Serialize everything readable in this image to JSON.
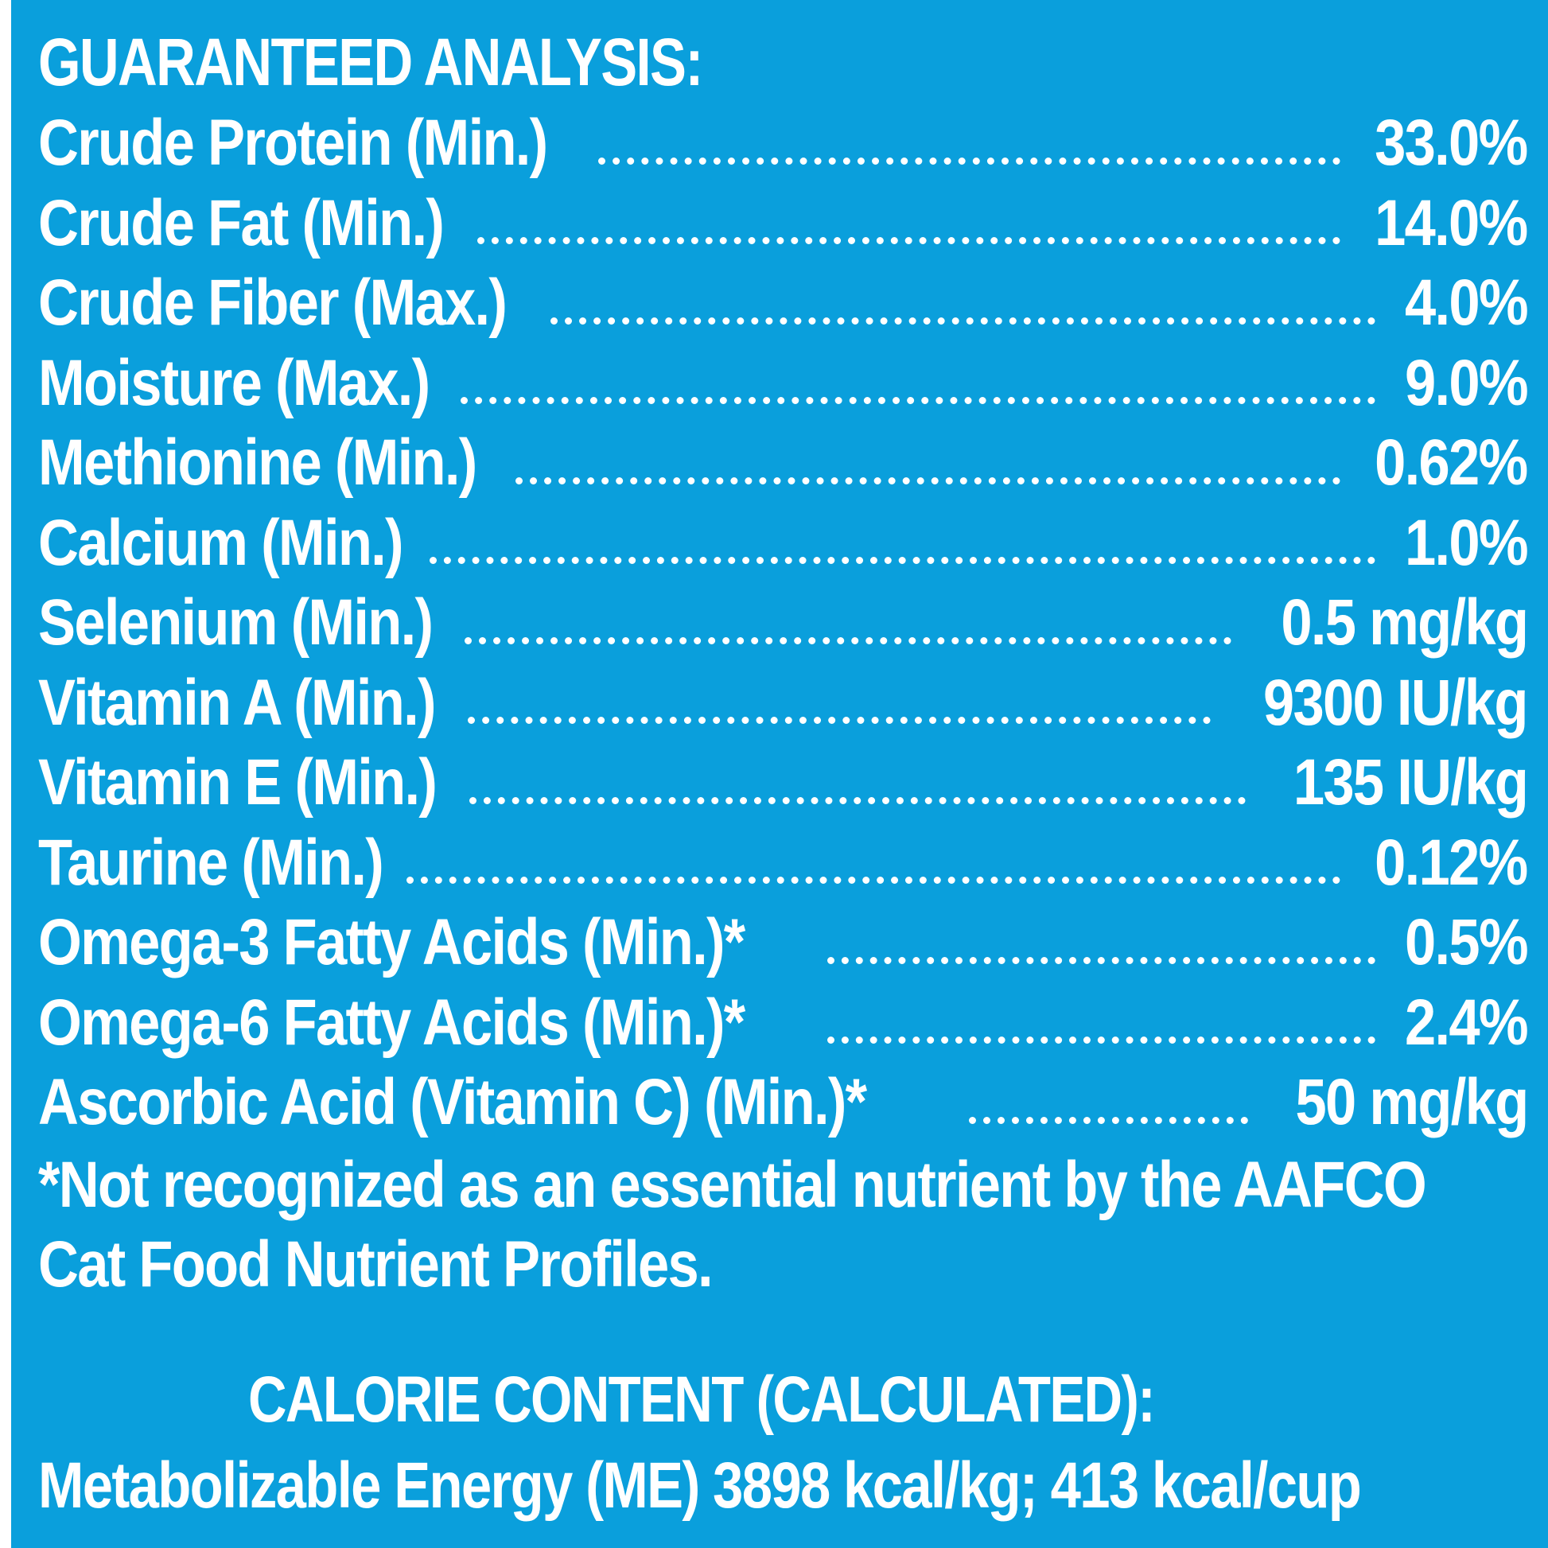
{
  "heading": "GUARANTEED ANALYSIS:",
  "rows": [
    {
      "label": "Crude Protein (Min.)",
      "value": "33.0%"
    },
    {
      "label": "Crude Fat (Min.)",
      "value": "14.0%"
    },
    {
      "label": "Crude Fiber (Max.)",
      "value": "4.0%"
    },
    {
      "label": "Moisture (Max.)",
      "value": "9.0%"
    },
    {
      "label": "Methionine (Min.)",
      "value": "0.62%"
    },
    {
      "label": "Calcium (Min.)",
      "value": "1.0%"
    },
    {
      "label": "Selenium (Min.)",
      "value": "0.5 mg/kg"
    },
    {
      "label": "Vitamin A (Min.)",
      "value": "9300 IU/kg"
    },
    {
      "label": "Vitamin E (Min.)",
      "value": "135 IU/kg"
    },
    {
      "label": "Taurine (Min.)",
      "value": "0.12%"
    },
    {
      "label": "Omega-3 Fatty Acids (Min.)*",
      "value": "0.5%"
    },
    {
      "label": "Omega-6 Fatty Acids (Min.)*",
      "value": "2.4%"
    },
    {
      "label": "Ascorbic Acid (Vitamin C) (Min.)*",
      "value": "50 mg/kg"
    }
  ],
  "footnote": "*Not recognized as an essential nutrient by the AAFCO Cat Food Nutrient Profiles.",
  "calorie": {
    "heading": "CALORIE CONTENT (CALCULATED):",
    "line": "Metabolizable Energy (ME) 3898 kcal/kg; 413 kcal/cup"
  },
  "colors": {
    "background": "#0a9fdc",
    "text": "#ffffff"
  }
}
